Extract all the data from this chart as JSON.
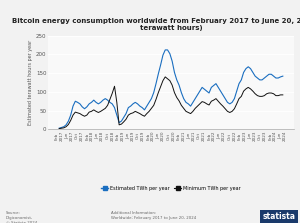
{
  "title": "Bitcoin energy consumption worldwide from February 2017 to June 20, 2024 (in\nterawatt hours)",
  "ylabel": "Estimated terawatt hours per year",
  "background_color": "#f2f2f2",
  "plot_bg_color": "#f9f9f9",
  "estimated_color": "#1a6ec0",
  "minimum_color": "#111111",
  "ylim": [
    0,
    250
  ],
  "yticks": [
    0,
    50,
    100,
    150,
    200,
    250
  ],
  "legend_labels": [
    "Estimated TWh per year",
    "Minimum TWh per year"
  ],
  "source_text": "Source:\nDigiconomist,\n© Statista 2024",
  "additional_text": "Additional Information:\nWorldwide; February 2017 to June 20, 2024",
  "statista_bg": "#1a3a6b",
  "xtick_labels": [
    "Feb\n2017",
    "Jun\n2017",
    "Oct\n2017",
    "Feb\n2018",
    "Jun\n2018",
    "Oct\n2018",
    "Feb\n2019",
    "Jun\n2019",
    "Oct\n2019",
    "Feb\n2020",
    "Jun\n2020",
    "Oct\n2020",
    "Feb\n2021",
    "Jun\n2021",
    "Oct\n2021",
    "Feb\n2022",
    "Jun\n2022",
    "Oct\n2022",
    "Feb\n2023",
    "Jun\n2023",
    "Oct\n2023",
    "Feb\n2024",
    "Jun\n2024"
  ],
  "estimated_twh": [
    3,
    5,
    7,
    12,
    22,
    38,
    62,
    75,
    72,
    68,
    60,
    55,
    60,
    68,
    72,
    78,
    72,
    68,
    72,
    78,
    82,
    78,
    72,
    68,
    58,
    38,
    18,
    22,
    32,
    42,
    58,
    62,
    68,
    72,
    68,
    62,
    58,
    52,
    62,
    72,
    82,
    98,
    122,
    148,
    172,
    198,
    212,
    212,
    202,
    182,
    152,
    132,
    118,
    98,
    82,
    72,
    68,
    62,
    72,
    82,
    92,
    102,
    112,
    107,
    102,
    97,
    112,
    117,
    122,
    112,
    102,
    92,
    82,
    72,
    68,
    72,
    82,
    102,
    122,
    132,
    152,
    162,
    167,
    162,
    152,
    142,
    137,
    132,
    132,
    137,
    142,
    147,
    147,
    142,
    137,
    137,
    140,
    142
  ],
  "minimum_twh": [
    2,
    3,
    4,
    7,
    13,
    24,
    38,
    46,
    44,
    42,
    38,
    35,
    38,
    46,
    48,
    52,
    48,
    45,
    48,
    52,
    56,
    64,
    80,
    96,
    115,
    72,
    12,
    14,
    20,
    27,
    38,
    42,
    44,
    48,
    45,
    42,
    38,
    35,
    42,
    48,
    56,
    64,
    80,
    98,
    114,
    130,
    140,
    135,
    130,
    118,
    98,
    85,
    76,
    64,
    56,
    48,
    45,
    42,
    48,
    56,
    62,
    68,
    74,
    72,
    68,
    65,
    75,
    78,
    82,
    75,
    68,
    62,
    55,
    48,
    45,
    48,
    55,
    68,
    82,
    88,
    102,
    108,
    112,
    108,
    102,
    95,
    90,
    88,
    88,
    90,
    95,
    97,
    97,
    95,
    90,
    90,
    92,
    92
  ]
}
